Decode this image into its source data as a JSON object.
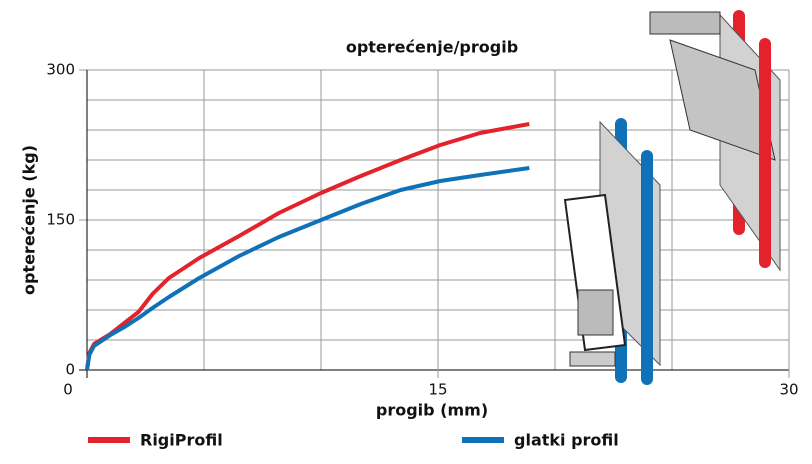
{
  "chart_data": {
    "type": "line",
    "title": "opterećenje/progib",
    "x_label": "progib (mm)",
    "y_label": "opterećenje (kg)",
    "x": [
      0,
      0.1,
      0.3,
      1,
      1.6,
      2.2,
      2.8,
      3.5,
      4.8,
      6.5,
      8.2,
      10,
      11.7,
      13.4,
      15.1,
      16.8,
      18.9
    ],
    "series": [
      {
        "name": "RigiProfil",
        "color": "#e3222b",
        "values": [
          0,
          17,
          26,
          36,
          47,
          58,
          76,
          92,
          112,
          134,
          157,
          177,
          194,
          210,
          225,
          237,
          246
        ]
      },
      {
        "name": "glatki profil",
        "color": "#0f72b8",
        "values": [
          0,
          15,
          24,
          35,
          43,
          52,
          62,
          73,
          92,
          114,
          133,
          150,
          166,
          180,
          189,
          195,
          202
        ]
      }
    ],
    "xlim": [
      0,
      30
    ],
    "ylim": [
      0,
      300
    ],
    "xticks": [
      0,
      15,
      30
    ],
    "yticks": [
      0,
      150,
      300
    ],
    "x_minor_ticks": [
      5,
      10,
      20,
      25
    ],
    "y_minor_ticks": [
      30,
      60,
      90,
      120,
      180,
      210,
      240,
      270
    ],
    "grid": true,
    "grid_color": "#999999"
  }
}
